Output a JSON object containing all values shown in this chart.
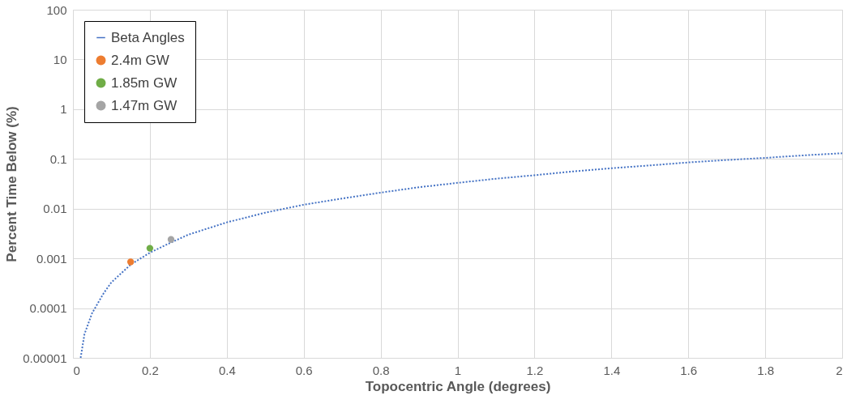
{
  "chart_data": {
    "type": "line",
    "xlabel": "Topocentric Angle (degrees)",
    "ylabel": "Percent Time Below (%)",
    "log": "y",
    "grid": true,
    "legend": "top left",
    "xlim": [
      0,
      2
    ],
    "xticks": [
      0,
      0.2,
      0.4,
      0.6,
      0.8,
      1,
      1.2,
      1.4,
      1.6,
      1.8,
      2
    ],
    "ylim": [
      1e-05,
      100
    ],
    "yticks": [
      {
        "value": 1e-05,
        "label": "0.00001"
      },
      {
        "value": 0.0001,
        "label": "0.0001"
      },
      {
        "value": 0.001,
        "label": "0.001"
      },
      {
        "value": 0.01,
        "label": "0.01"
      },
      {
        "value": 0.1,
        "label": "0.1"
      },
      {
        "value": 1,
        "label": "1"
      },
      {
        "value": 10,
        "label": "10"
      },
      {
        "value": 100,
        "label": "100"
      }
    ],
    "series": [
      {
        "name": "Beta Angles",
        "color": "#4472c4",
        "line_style": "dotted",
        "marker": "none",
        "x": [
          0.02,
          0.03,
          0.05,
          0.08,
          0.1,
          0.15,
          0.2,
          0.25,
          0.3,
          0.4,
          0.5,
          0.6,
          0.7,
          0.8,
          0.9,
          1.0,
          1.1,
          1.2,
          1.3,
          1.4,
          1.5,
          1.6,
          1.7,
          1.8,
          1.9,
          2.0
        ],
        "values": [
          1e-05,
          3e-05,
          8e-05,
          0.0002,
          0.00033,
          0.00075,
          0.0013,
          0.002,
          0.003,
          0.0053,
          0.0083,
          0.012,
          0.016,
          0.021,
          0.027,
          0.033,
          0.04,
          0.047,
          0.056,
          0.065,
          0.074,
          0.085,
          0.095,
          0.105,
          0.118,
          0.13
        ]
      },
      {
        "name": "2.4m GW",
        "type": "scatter",
        "color": "#ed7d31",
        "marker": "circle",
        "x": [
          0.15
        ],
        "values": [
          0.00085
        ]
      },
      {
        "name": "1.85m GW",
        "type": "scatter",
        "color": "#70ad47",
        "marker": "circle",
        "x": [
          0.2
        ],
        "values": [
          0.0016
        ]
      },
      {
        "name": "1.47m GW",
        "type": "scatter",
        "color": "#a5a5a5",
        "marker": "circle",
        "x": [
          0.255
        ],
        "values": [
          0.0024
        ]
      }
    ]
  }
}
